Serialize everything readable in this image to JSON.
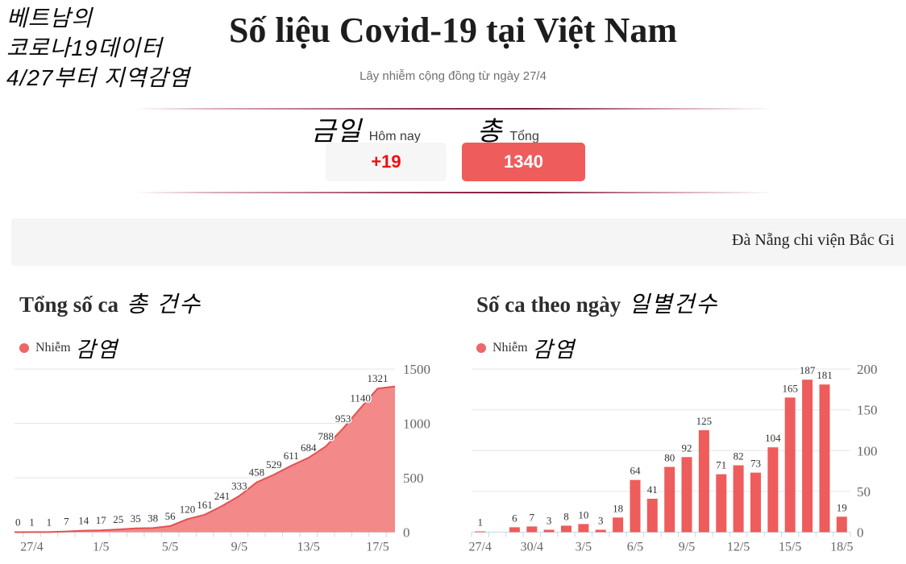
{
  "annotation": {
    "lines": [
      "베트남의",
      "코로나19데이터",
      "4/27부터 지역감염"
    ]
  },
  "header": {
    "title": "Số liệu Covid-19 tại Việt Nam",
    "subtitle": "Lây nhiễm cộng đồng từ ngày 27/4"
  },
  "stats": {
    "today": {
      "label_ko": "금일",
      "label_vi": "Hôm nay",
      "value": "+19"
    },
    "total": {
      "label_ko": "총",
      "label_vi": "Tổng",
      "value": "1340"
    }
  },
  "ticker": {
    "text": "Đà Nẵng chi viện Bắc Gi"
  },
  "colors": {
    "accent_red": "#ee5c5c",
    "area_fill": "#f38989",
    "area_line": "#e25252",
    "legend_dot": "#ee6666",
    "today_value_red": "#ef0f0f",
    "grid": "#e6e6e6",
    "axis": "#ccd6eb",
    "ticker_bg": "#f5f5f5"
  },
  "chart_data": [
    {
      "type": "area",
      "title": "Tổng số ca",
      "title_annotation_ko": "총 건수",
      "legend": [
        {
          "name": "Nhiễm",
          "annotation_ko": "감염",
          "color": "#ee6666"
        }
      ],
      "x": [
        "26/4",
        "27/4",
        "28/4",
        "29/4",
        "30/4",
        "1/5",
        "2/5",
        "3/5",
        "4/5",
        "5/5",
        "6/5",
        "7/5",
        "8/5",
        "9/5",
        "10/5",
        "11/5",
        "12/5",
        "13/5",
        "14/5",
        "15/5",
        "16/5",
        "17/5",
        "18/5"
      ],
      "values": [
        0,
        1,
        1,
        7,
        14,
        17,
        25,
        35,
        38,
        56,
        120,
        161,
        241,
        333,
        458,
        529,
        611,
        684,
        788,
        953,
        1140,
        1321,
        1340
      ],
      "point_labels": [
        "0",
        "1",
        "1",
        "7",
        "14",
        "17",
        "25",
        "35",
        "38",
        "56",
        "120",
        "161",
        "241",
        "333",
        "458",
        "529",
        "611",
        "684",
        "788",
        "953",
        "1140",
        "1321",
        ""
      ],
      "x_tick_labels": [
        "27/4",
        "1/5",
        "5/5",
        "9/5",
        "13/5",
        "17/5"
      ],
      "x_tick_positions": [
        1,
        5,
        9,
        13,
        17,
        21
      ],
      "ylim": [
        0,
        1500
      ],
      "yticks": [
        0,
        500,
        1000,
        1500
      ],
      "y_axis_side": "right",
      "grid": true,
      "color": "#ee5c5c",
      "area_fill": "#f38989",
      "area_line": "#e25252"
    },
    {
      "type": "bar",
      "title": "Số ca theo ngày",
      "title_annotation_ko": "일별건수",
      "legend": [
        {
          "name": "Nhiễm",
          "annotation_ko": "감염",
          "color": "#ee6666"
        }
      ],
      "x": [
        "27/4",
        "28/4",
        "29/4",
        "30/4",
        "1/5",
        "2/5",
        "3/5",
        "4/5",
        "5/5",
        "6/5",
        "7/5",
        "8/5",
        "9/5",
        "10/5",
        "11/5",
        "12/5",
        "13/5",
        "14/5",
        "15/5",
        "16/5",
        "17/5",
        "18/5"
      ],
      "values": [
        1,
        0,
        6,
        7,
        3,
        8,
        10,
        3,
        18,
        64,
        41,
        80,
        92,
        125,
        71,
        82,
        73,
        104,
        165,
        187,
        181,
        19
      ],
      "x_tick_labels": [
        "27/4",
        "30/4",
        "3/5",
        "6/5",
        "9/5",
        "12/5",
        "15/5",
        "18/5"
      ],
      "x_tick_positions": [
        0,
        3,
        6,
        9,
        12,
        15,
        18,
        21
      ],
      "ylim": [
        0,
        200
      ],
      "yticks": [
        0,
        50,
        100,
        150,
        200
      ],
      "y_axis_side": "right",
      "grid": true,
      "color": "#ee5c5c"
    }
  ]
}
